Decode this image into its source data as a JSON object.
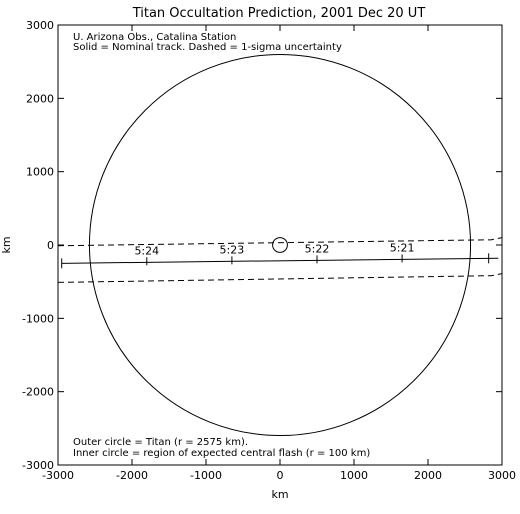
{
  "chart_data": {
    "type": "line",
    "title": "Titan Occultation Prediction, 2001 Dec 20 UT",
    "xlabel": "km",
    "ylabel": "km",
    "xlim": [
      -3000,
      3000
    ],
    "ylim": [
      -3000,
      3000
    ],
    "x_ticks": [
      -3000,
      -2000,
      -1000,
      0,
      1000,
      2000,
      3000
    ],
    "y_ticks": [
      3000,
      2000,
      1000,
      0,
      -1000,
      -2000,
      -3000
    ],
    "x_tick_labels": [
      "-3000",
      "-2000",
      "-1000",
      "0",
      "1000",
      "2000",
      "3000"
    ],
    "y_tick_labels": [
      "3000",
      "2000",
      "1000",
      "0",
      "-1000",
      "-2000",
      "-3000"
    ],
    "annotations_top": [
      "U. Arizona Obs., Catalina Station",
      "Solid = Nominal track.  Dashed = 1-sigma uncertainty"
    ],
    "annotations_bottom": [
      "Outer circle = Titan (r = 2575 km).",
      "Inner circle = region of expected central flash (r = 100 km)"
    ],
    "circles": [
      {
        "center": [
          0,
          0
        ],
        "r": 2575
      },
      {
        "center": [
          0,
          0
        ],
        "r": 100
      }
    ],
    "nominal_track": {
      "x": [
        -2950,
        2950
      ],
      "y": [
        -250,
        -180
      ]
    },
    "upper_bound": {
      "x": [
        -3000,
        2750,
        2850,
        2950,
        3000
      ],
      "y": [
        -10,
        70,
        70,
        90,
        100
      ]
    },
    "lower_bound": {
      "x": [
        -3000,
        2750,
        2850,
        2950,
        3000
      ],
      "y": [
        -510,
        -420,
        -420,
        -400,
        -390
      ]
    },
    "time_marks": [
      {
        "label": "5:24",
        "x": -1800,
        "y": -222
      },
      {
        "label": "5:23",
        "x": -650,
        "y": -209
      },
      {
        "label": "5:22",
        "x": 500,
        "y": -196
      },
      {
        "label": "5:21",
        "x": 1650,
        "y": -183
      }
    ],
    "end_marks": [
      {
        "x": -2950,
        "y": -250
      },
      {
        "x": 2820,
        "y": -182
      }
    ],
    "grid": false
  }
}
